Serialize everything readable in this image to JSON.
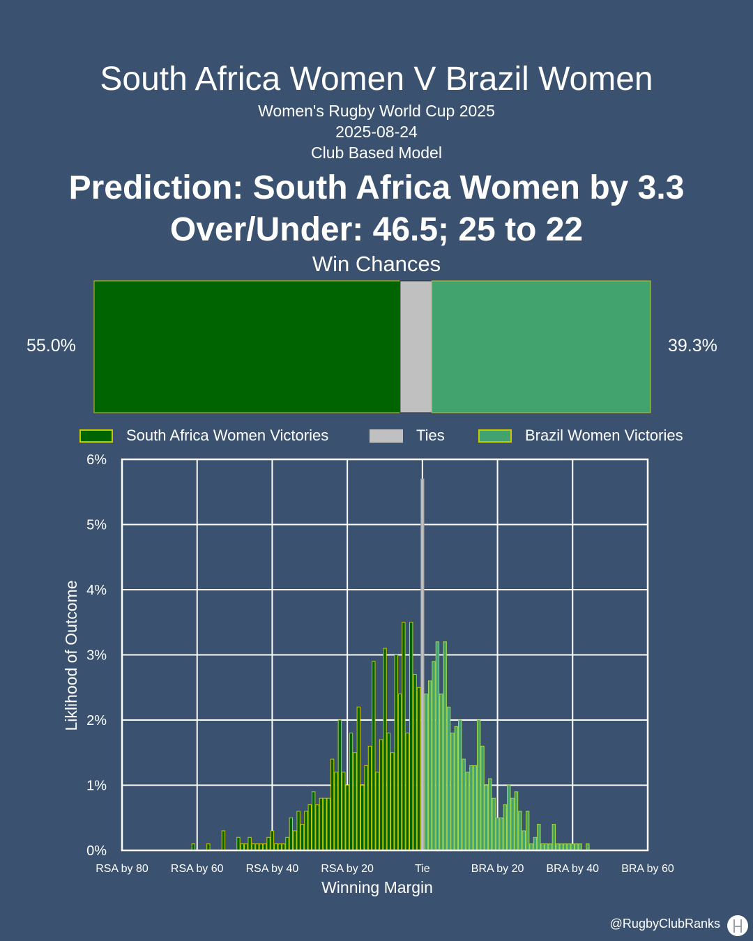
{
  "header": {
    "title": "South Africa Women V Brazil Women",
    "competition": "Women's Rugby World Cup 2025",
    "date": "2025-08-24",
    "model": "Club Based Model",
    "prediction": "Prediction: South Africa Women by 3.3",
    "over_under": "Over/Under: 46.5; 25 to 22"
  },
  "win_chances": {
    "title": "Win Chances",
    "left_label": "55.0%",
    "right_label": "39.3%",
    "home_win": 55.0,
    "tie": 5.7,
    "away_win": 39.3,
    "colors": {
      "home": "#006400",
      "tie": "#c0c0c0",
      "away": "#43a36e",
      "edge": "#c8c800"
    }
  },
  "legend": {
    "home": "South Africa Women Victories",
    "tie": "Ties",
    "away": "Brazil Women Victories"
  },
  "chart_data": {
    "type": "bar",
    "xlabel": "Winning Margin",
    "ylabel": "Liklihood of Outcome",
    "xlim": [
      -80,
      60
    ],
    "ylim": [
      0,
      6
    ],
    "xticks": [
      -80,
      -60,
      -40,
      -20,
      0,
      20,
      40,
      60
    ],
    "xtick_labels": [
      "RSA by 80",
      "RSA by 60",
      "RSA by 40",
      "RSA by 20",
      "Tie",
      "BRA by 20",
      "BRA by 40",
      "BRA by 60"
    ],
    "yticks": [
      0,
      1,
      2,
      3,
      4,
      5,
      6
    ],
    "ytick_labels": [
      "0%",
      "1%",
      "2%",
      "3%",
      "4%",
      "5%",
      "6%"
    ],
    "grid": true,
    "series": [
      {
        "name": "South Africa Women Victories",
        "color": "#006400",
        "x": [
          -61,
          -57,
          -53,
          -49,
          -48,
          -47,
          -46,
          -45,
          -44,
          -43,
          -42,
          -41,
          -40,
          -39,
          -38,
          -37,
          -36,
          -35,
          -34,
          -33,
          -32,
          -31,
          -30,
          -29,
          -28,
          -27,
          -26,
          -25,
          -24,
          -23,
          -22,
          -21,
          -20,
          -19,
          -18,
          -17,
          -16,
          -15,
          -14,
          -13,
          -12,
          -11,
          -10,
          -9,
          -8,
          -7,
          -6,
          -5,
          -4,
          -3,
          -2,
          -1
        ],
        "values": [
          0.1,
          0.1,
          0.3,
          0.2,
          0.1,
          0.1,
          0.2,
          0.1,
          0.1,
          0.1,
          0.1,
          0.2,
          0.3,
          0.1,
          0.1,
          0.1,
          0.2,
          0.5,
          0.3,
          0.6,
          0.4,
          0.6,
          0.7,
          0.9,
          0.7,
          0.8,
          0.8,
          0.8,
          1.4,
          1.2,
          2.0,
          1.2,
          1.0,
          1.8,
          1.5,
          2.2,
          1.0,
          1.3,
          1.6,
          2.9,
          1.2,
          1.7,
          3.1,
          1.8,
          1.5,
          3.0,
          2.4,
          3.5,
          1.8,
          3.5,
          2.7,
          2.5
        ]
      },
      {
        "name": "Ties",
        "color": "#c0c0c0",
        "x": [
          0
        ],
        "values": [
          5.7
        ]
      },
      {
        "name": "Brazil Women Victories",
        "color": "#43a36e",
        "x": [
          1,
          2,
          3,
          4,
          5,
          6,
          7,
          8,
          9,
          10,
          11,
          12,
          13,
          14,
          15,
          16,
          17,
          18,
          19,
          20,
          21,
          22,
          23,
          24,
          25,
          26,
          27,
          28,
          29,
          30,
          31,
          32,
          33,
          34,
          35,
          36,
          37,
          38,
          39,
          40,
          41,
          42,
          44
        ],
        "values": [
          2.4,
          2.6,
          2.9,
          3.2,
          2.4,
          3.2,
          2.2,
          1.8,
          1.9,
          2.0,
          1.4,
          1.2,
          1.3,
          1.3,
          2.0,
          1.6,
          1.0,
          1.1,
          0.8,
          0.5,
          0.5,
          0.7,
          1.0,
          0.8,
          0.9,
          0.6,
          0.3,
          0.6,
          0.1,
          0.2,
          0.4,
          0.1,
          0.1,
          0.1,
          0.4,
          0.1,
          0.1,
          0.1,
          0.1,
          0.1,
          0.1,
          0.1,
          0.1
        ]
      }
    ]
  },
  "footer": {
    "handle": "@RugbyClubRanks",
    "logo_icon": "goalposts-icon"
  }
}
